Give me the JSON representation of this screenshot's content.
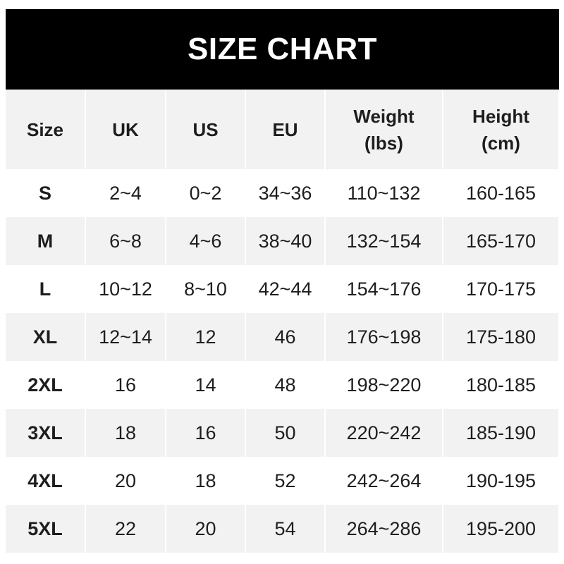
{
  "title": "SIZE CHART",
  "headers": [
    "Size",
    "UK",
    "US",
    "EU",
    "Weight\n(lbs)",
    "Height\n(cm)"
  ],
  "header_lines": [
    [
      "Size"
    ],
    [
      "UK"
    ],
    [
      "US"
    ],
    [
      "EU"
    ],
    [
      "Weight",
      "(lbs)"
    ],
    [
      "Height",
      "(cm)"
    ]
  ],
  "colors": {
    "title_bg": "#000000",
    "title_text": "#ffffff",
    "stripe": "#f2f2f2",
    "text": "#1e1e1e"
  },
  "chart_data": {
    "type": "table",
    "title": "SIZE CHART",
    "columns": [
      "Size",
      "UK",
      "US",
      "EU",
      "Weight (lbs)",
      "Height (cm)"
    ],
    "rows": [
      [
        "S",
        "2~4",
        "0~2",
        "34~36",
        "110~132",
        "160-165"
      ],
      [
        "M",
        "6~8",
        "4~6",
        "38~40",
        "132~154",
        "165-170"
      ],
      [
        "L",
        "10~12",
        "8~10",
        "42~44",
        "154~176",
        "170-175"
      ],
      [
        "XL",
        "12~14",
        "12",
        "46",
        "176~198",
        "175-180"
      ],
      [
        "2XL",
        "16",
        "14",
        "48",
        "198~220",
        "180-185"
      ],
      [
        "3XL",
        "18",
        "16",
        "50",
        "220~242",
        "185-190"
      ],
      [
        "4XL",
        "20",
        "18",
        "52",
        "242~264",
        "190-195"
      ],
      [
        "5XL",
        "22",
        "20",
        "54",
        "264~286",
        "195-200"
      ]
    ]
  }
}
